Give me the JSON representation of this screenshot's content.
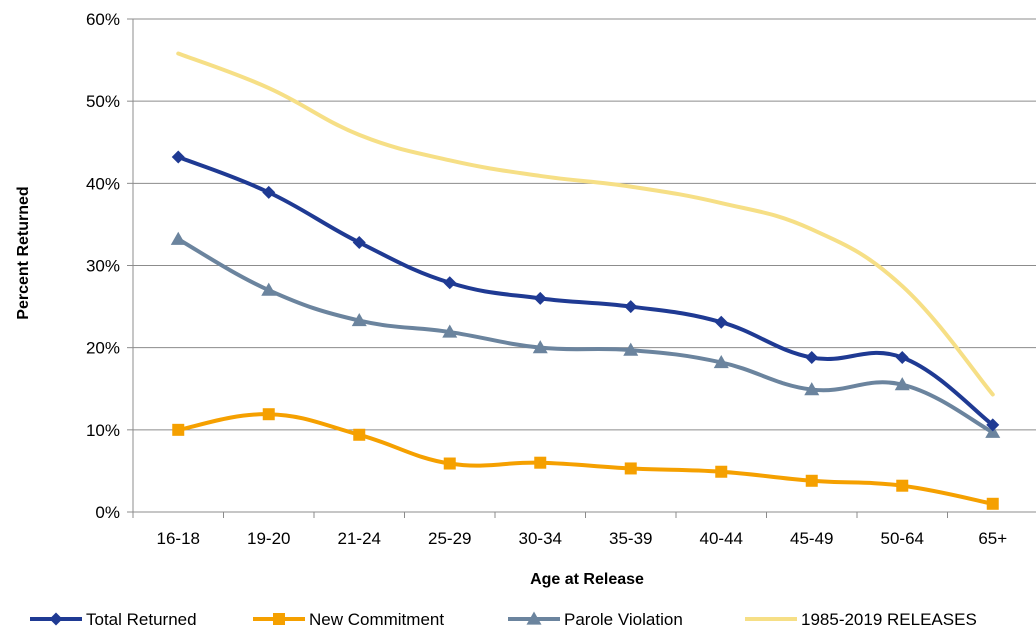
{
  "chart_data": {
    "type": "line",
    "title": "",
    "xlabel": "Age at Release",
    "ylabel": "Percent Returned",
    "categories": [
      "16-18",
      "19-20",
      "21-24",
      "25-29",
      "30-34",
      "35-39",
      "40-44",
      "45-49",
      "50-64",
      "65+"
    ],
    "ylim": [
      0,
      60
    ],
    "yticks": [
      0,
      10,
      20,
      30,
      40,
      50,
      60
    ],
    "ytick_labels": [
      "0%",
      "10%",
      "20%",
      "30%",
      "40%",
      "50%",
      "60%"
    ],
    "grid": "horizontal",
    "legend_position": "bottom",
    "series": [
      {
        "name": "Total Returned",
        "values": [
          43.2,
          38.9,
          32.8,
          27.9,
          26.0,
          25.0,
          23.1,
          18.8,
          18.8,
          10.6
        ],
        "color": "#1F3A93",
        "marker": "diamond",
        "smooth": true
      },
      {
        "name": "New Commitment",
        "values": [
          10.0,
          11.9,
          9.4,
          5.9,
          6.0,
          5.3,
          4.9,
          3.8,
          3.2,
          1.0
        ],
        "color": "#F5A000",
        "marker": "square",
        "smooth": true
      },
      {
        "name": "Parole Violation",
        "values": [
          33.2,
          27.0,
          23.3,
          21.9,
          20.0,
          19.7,
          18.2,
          14.9,
          15.5,
          9.7
        ],
        "color": "#6B849E",
        "marker": "triangle",
        "smooth": true
      },
      {
        "name": "1985-2019 RELEASES",
        "values": [
          55.8,
          51.6,
          45.9,
          42.8,
          40.9,
          39.6,
          37.6,
          34.4,
          27.5,
          14.3
        ],
        "color": "#F6DF86",
        "marker": "none",
        "smooth": true
      }
    ]
  }
}
